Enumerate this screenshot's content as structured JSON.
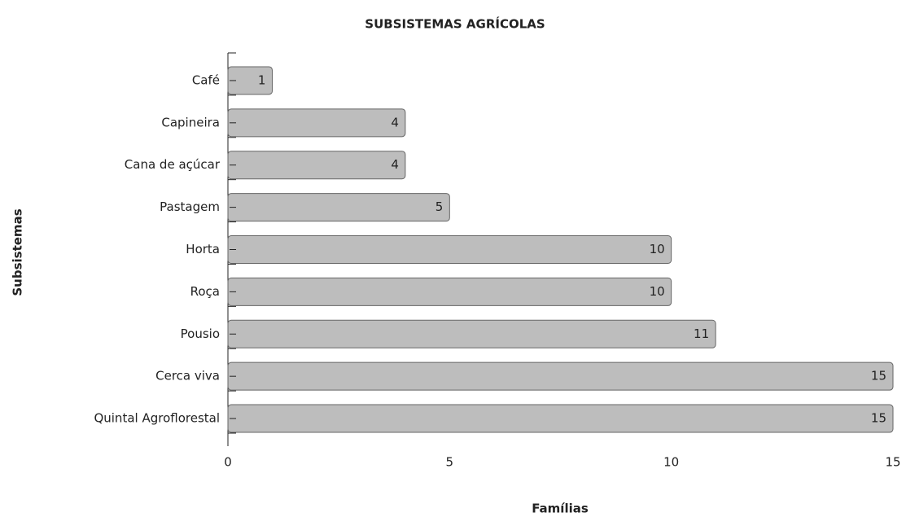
{
  "chart_data": {
    "type": "barh",
    "title": "SUBSISTEMAS AGRÍCOLAS",
    "xlabel": "Famílias",
    "ylabel": "Subsistemas",
    "categories": [
      "Café",
      "Capineira",
      "Cana de açúcar",
      "Pastagem",
      "Horta",
      "Roça",
      "Pousio",
      "Cerca viva",
      "Quintal Agroflorestal"
    ],
    "values": [
      1,
      4,
      4,
      5,
      10,
      10,
      11,
      15,
      15
    ],
    "color": "#bdbdbd",
    "xlim": [
      0,
      15
    ],
    "xticks": [
      0,
      5,
      10,
      15
    ]
  }
}
